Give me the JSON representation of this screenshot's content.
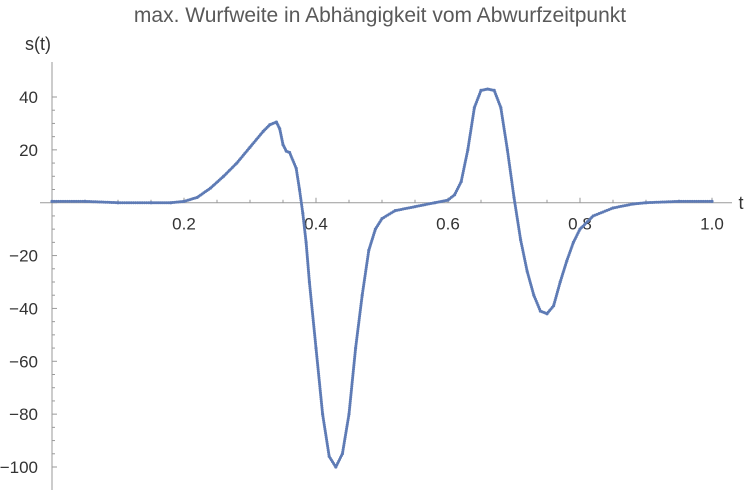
{
  "chart_data": {
    "type": "scatter",
    "title": "max. Wurfweite in Abhängigkeit vom Abwurfzeitpunkt",
    "xlabel": "t",
    "ylabel": "s(t)",
    "xlim": [
      0,
      1.0
    ],
    "ylim": [
      -110,
      50
    ],
    "grid": false,
    "x_ticks": [
      0.2,
      0.4,
      0.6,
      0.8,
      1.0
    ],
    "x_tick_labels": [
      "0.2",
      "0.4",
      "0.6",
      "0.8",
      "1.0"
    ],
    "y_ticks": [
      40,
      20,
      -20,
      -40,
      -60,
      -80,
      -100
    ],
    "y_tick_labels": [
      "40",
      "20",
      "−20",
      "−40",
      "−60",
      "−80",
      "−100"
    ],
    "series": [
      {
        "color": "#5e7bb5",
        "x": [
          0.0,
          0.05,
          0.1,
          0.15,
          0.18,
          0.2,
          0.22,
          0.24,
          0.26,
          0.28,
          0.3,
          0.32,
          0.33,
          0.34,
          0.345,
          0.35,
          0.355,
          0.36,
          0.37,
          0.375,
          0.38,
          0.385,
          0.39,
          0.4,
          0.41,
          0.42,
          0.43,
          0.44,
          0.45,
          0.46,
          0.47,
          0.48,
          0.49,
          0.5,
          0.52,
          0.55,
          0.58,
          0.6,
          0.61,
          0.62,
          0.63,
          0.64,
          0.65,
          0.66,
          0.67,
          0.68,
          0.69,
          0.7,
          0.71,
          0.72,
          0.73,
          0.74,
          0.75,
          0.76,
          0.77,
          0.78,
          0.79,
          0.8,
          0.82,
          0.85,
          0.88,
          0.9,
          0.95,
          1.0
        ],
        "y": [
          0.5,
          0.5,
          0,
          0,
          0,
          0.5,
          2,
          5.5,
          10,
          15,
          21,
          27,
          29.5,
          30.5,
          28,
          22,
          19.5,
          19,
          13,
          5,
          -4,
          -15,
          -30,
          -55,
          -80,
          -96,
          -100,
          -95,
          -80,
          -55,
          -35,
          -18,
          -10,
          -6,
          -3,
          -1.5,
          0,
          1,
          3,
          8,
          20,
          36,
          42.5,
          43,
          42.5,
          36,
          20,
          2,
          -14,
          -26,
          -35,
          -41,
          -42,
          -39,
          -30,
          -22,
          -15,
          -10,
          -5,
          -2,
          -0.5,
          0,
          0.5,
          0.5
        ]
      }
    ]
  }
}
